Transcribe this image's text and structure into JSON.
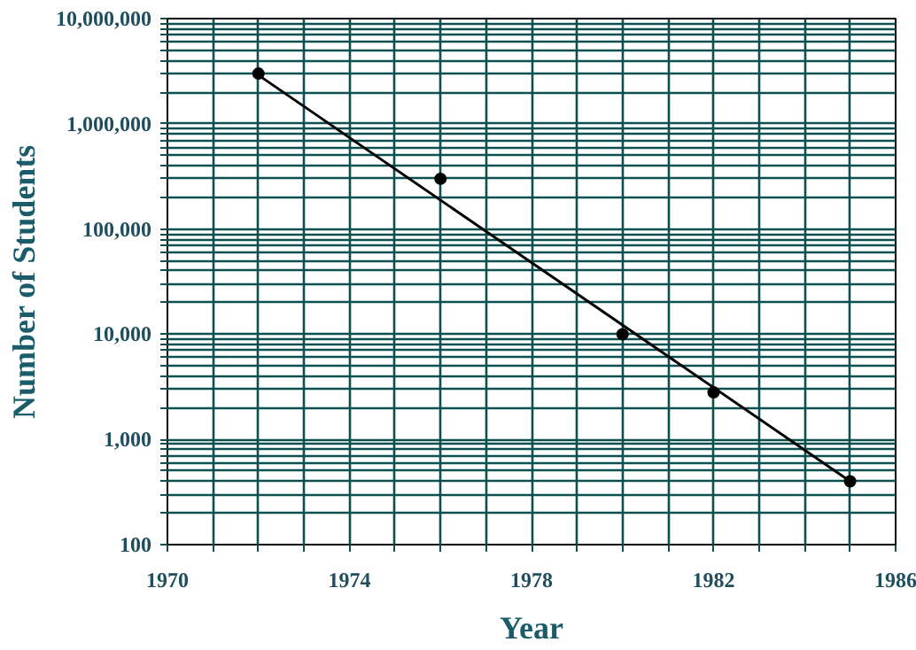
{
  "chart_data": {
    "type": "scatter",
    "xlabel": "Year",
    "ylabel": "Number of Students",
    "log": "y",
    "xlim": [
      1970,
      1986
    ],
    "ylim": [
      100,
      10000000
    ],
    "xticks": [
      1970,
      {
        "value": 1971,
        "label": null
      },
      {
        "value": 1972,
        "label": null
      },
      {
        "value": 1973,
        "label": null
      },
      1974,
      {
        "value": 1975,
        "label": null
      },
      {
        "value": 1976,
        "label": null
      },
      {
        "value": 1977,
        "label": null
      },
      1978,
      {
        "value": 1979,
        "label": null
      },
      {
        "value": 1980,
        "label": null
      },
      {
        "value": 1981,
        "label": null
      },
      1982,
      {
        "value": 1983,
        "label": null
      },
      {
        "value": 1984,
        "label": null
      },
      {
        "value": 1985,
        "label": null
      },
      1986
    ],
    "yticks": [
      100,
      {
        "value": 200,
        "label": null
      },
      {
        "value": 300,
        "label": null
      },
      {
        "value": 400,
        "label": null
      },
      {
        "value": 500,
        "label": null
      },
      {
        "value": 600,
        "label": null
      },
      {
        "value": 700,
        "label": null
      },
      {
        "value": 800,
        "label": null
      },
      {
        "value": 900,
        "label": null
      },
      {
        "value": 1000,
        "label": "1,000"
      },
      {
        "value": 2000,
        "label": null
      },
      {
        "value": 3000,
        "label": null
      },
      {
        "value": 4000,
        "label": null
      },
      {
        "value": 5000,
        "label": null
      },
      {
        "value": 6000,
        "label": null
      },
      {
        "value": 7000,
        "label": null
      },
      {
        "value": 8000,
        "label": null
      },
      {
        "value": 9000,
        "label": null
      },
      {
        "value": 10000,
        "label": "10,000"
      },
      {
        "value": 20000,
        "label": null
      },
      {
        "value": 30000,
        "label": null
      },
      {
        "value": 40000,
        "label": null
      },
      {
        "value": 50000,
        "label": null
      },
      {
        "value": 60000,
        "label": null
      },
      {
        "value": 70000,
        "label": null
      },
      {
        "value": 80000,
        "label": null
      },
      {
        "value": 90000,
        "label": null
      },
      {
        "value": 100000,
        "label": "100,000"
      },
      {
        "value": 200000,
        "label": null
      },
      {
        "value": 300000,
        "label": null
      },
      {
        "value": 400000,
        "label": null
      },
      {
        "value": 500000,
        "label": null
      },
      {
        "value": 600000,
        "label": null
      },
      {
        "value": 700000,
        "label": null
      },
      {
        "value": 800000,
        "label": null
      },
      {
        "value": 900000,
        "label": null
      },
      {
        "value": 1000000,
        "label": "1,000,000"
      },
      {
        "value": 2000000,
        "label": null
      },
      {
        "value": 3000000,
        "label": null
      },
      {
        "value": 4000000,
        "label": null
      },
      {
        "value": 5000000,
        "label": null
      },
      {
        "value": 6000000,
        "label": null
      },
      {
        "value": 7000000,
        "label": null
      },
      {
        "value": 8000000,
        "label": null
      },
      {
        "value": 9000000,
        "label": null
      },
      {
        "value": 10000000,
        "label": "10,000,000"
      }
    ],
    "grid": true,
    "marker": "circle",
    "series": [
      {
        "color": "#000000",
        "x": [
          1972,
          1976,
          1980,
          1982,
          1985
        ],
        "values": [
          3000000,
          300000,
          10000,
          2800,
          400
        ]
      },
      {
        "type": "line",
        "color": "#000000",
        "marker": "none",
        "x": [
          1972,
          1985
        ],
        "values": [
          2900000,
          400
        ]
      }
    ]
  }
}
